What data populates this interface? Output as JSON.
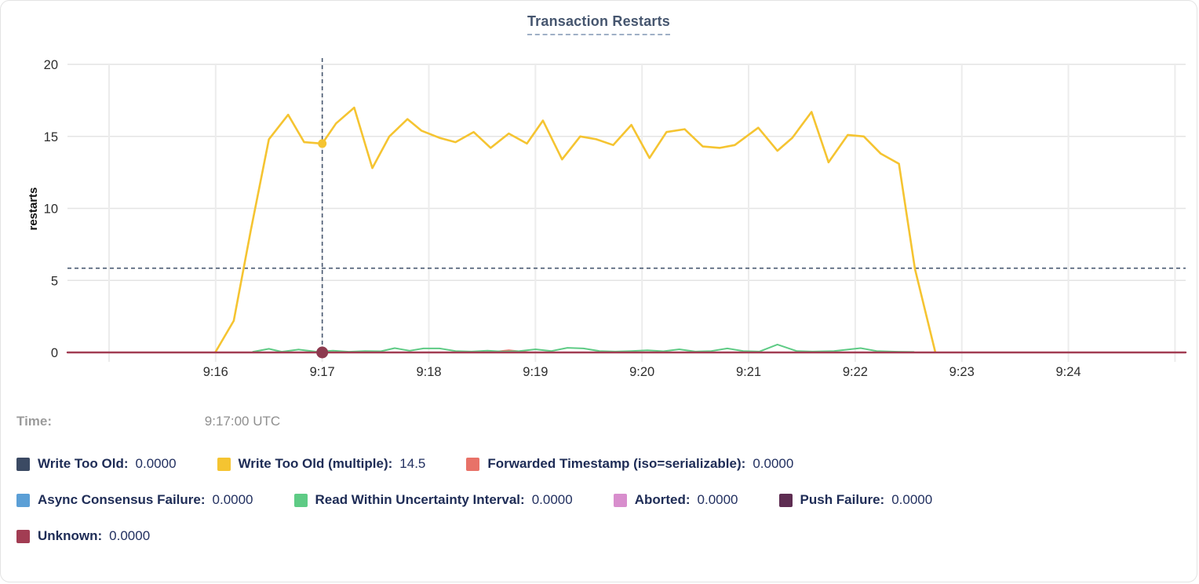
{
  "title": "Transaction Restarts",
  "tooltip": {
    "time_label": "Time:",
    "time_value": "9:17:00 UTC"
  },
  "colors": {
    "title": "#46566f",
    "crosshair": "#4a5a72",
    "grid": "#e4e4e4",
    "axis_text": "#2d2d2d",
    "write_too_old": "#3b4a63",
    "write_too_old_multiple": "#f5c431",
    "forwarded_timestamp": "#e87268",
    "async_consensus_failure": "#5b9fd6",
    "read_within_uncertainty": "#5ecb85",
    "aborted": "#d88ecd",
    "push_failure": "#5e2d52",
    "unknown": "#a23d53",
    "hover_dot_unknown": "#8d3a4f"
  },
  "chart_data": {
    "type": "line",
    "title": "Transaction Restarts",
    "xlabel": "",
    "ylabel": "restarts",
    "ylim": [
      0,
      20
    ],
    "yticks": [
      0,
      5,
      10,
      15,
      20
    ],
    "grid": true,
    "legend_position": "bottom",
    "x_domain_minutes": [
      14.61,
      25.1
    ],
    "grid_minutes": [
      15,
      16,
      17,
      18,
      19,
      20,
      21,
      22,
      23,
      24,
      25
    ],
    "xticks": [
      {
        "t": 16,
        "label": "9:16"
      },
      {
        "t": 17,
        "label": "9:17"
      },
      {
        "t": 18,
        "label": "9:18"
      },
      {
        "t": 19,
        "label": "9:19"
      },
      {
        "t": 20,
        "label": "9:20"
      },
      {
        "t": 21,
        "label": "9:21"
      },
      {
        "t": 22,
        "label": "9:22"
      },
      {
        "t": 23,
        "label": "9:23"
      },
      {
        "t": 24,
        "label": "9:24"
      }
    ],
    "crosshair": {
      "t": 17.0,
      "hover_value_line": 5.85,
      "time_text": "9:17:00 UTC",
      "dots": [
        {
          "series": "Unknown",
          "t": 17.0,
          "value": 0,
          "color": "#8d3a4f",
          "r": 7.5
        },
        {
          "series": "Write Too Old (multiple)",
          "t": 17.0,
          "value": 14.5,
          "color": "#f5c431",
          "r": 5.5
        }
      ]
    },
    "series": [
      {
        "name": "Write Too Old (multiple)",
        "color": "#f5c431",
        "width": 2.6,
        "points": [
          [
            16.0,
            0.05
          ],
          [
            16.17,
            2.2
          ],
          [
            16.33,
            8.5
          ],
          [
            16.5,
            14.8
          ],
          [
            16.68,
            16.5
          ],
          [
            16.83,
            14.6
          ],
          [
            17.0,
            14.5
          ],
          [
            17.13,
            15.9
          ],
          [
            17.3,
            17.0
          ],
          [
            17.47,
            12.8
          ],
          [
            17.63,
            15.0
          ],
          [
            17.8,
            16.2
          ],
          [
            17.93,
            15.4
          ],
          [
            18.1,
            14.9
          ],
          [
            18.25,
            14.6
          ],
          [
            18.42,
            15.3
          ],
          [
            18.58,
            14.2
          ],
          [
            18.75,
            15.2
          ],
          [
            18.92,
            14.5
          ],
          [
            19.07,
            16.1
          ],
          [
            19.25,
            13.4
          ],
          [
            19.42,
            15.0
          ],
          [
            19.57,
            14.8
          ],
          [
            19.73,
            14.4
          ],
          [
            19.9,
            15.8
          ],
          [
            20.07,
            13.5
          ],
          [
            20.23,
            15.3
          ],
          [
            20.4,
            15.5
          ],
          [
            20.57,
            14.3
          ],
          [
            20.73,
            14.2
          ],
          [
            20.87,
            14.4
          ],
          [
            21.09,
            15.6
          ],
          [
            21.27,
            14.0
          ],
          [
            21.41,
            14.9
          ],
          [
            21.59,
            16.7
          ],
          [
            21.75,
            13.2
          ],
          [
            21.93,
            15.1
          ],
          [
            22.08,
            15.0
          ],
          [
            22.24,
            13.8
          ],
          [
            22.41,
            13.1
          ],
          [
            22.56,
            5.8
          ],
          [
            22.75,
            0.05
          ]
        ]
      },
      {
        "name": "Forwarded Timestamp (iso=serializable)",
        "color": "#e87268",
        "width": 2,
        "points": [
          [
            14.61,
            0.0
          ],
          [
            18.55,
            0.0
          ],
          [
            18.75,
            0.15
          ],
          [
            18.95,
            0.0
          ],
          [
            25.1,
            0.0
          ]
        ]
      },
      {
        "name": "Read Within Uncertainty Interval",
        "color": "#5ecb85",
        "width": 2,
        "points": [
          [
            16.35,
            0.05
          ],
          [
            16.5,
            0.25
          ],
          [
            16.62,
            0.05
          ],
          [
            16.78,
            0.2
          ],
          [
            16.95,
            0.05
          ],
          [
            17.1,
            0.12
          ],
          [
            17.25,
            0.05
          ],
          [
            17.4,
            0.1
          ],
          [
            17.55,
            0.08
          ],
          [
            17.68,
            0.3
          ],
          [
            17.82,
            0.12
          ],
          [
            17.95,
            0.28
          ],
          [
            18.1,
            0.28
          ],
          [
            18.25,
            0.1
          ],
          [
            18.4,
            0.06
          ],
          [
            18.55,
            0.12
          ],
          [
            18.7,
            0.06
          ],
          [
            18.85,
            0.1
          ],
          [
            19.0,
            0.22
          ],
          [
            19.15,
            0.1
          ],
          [
            19.3,
            0.32
          ],
          [
            19.45,
            0.28
          ],
          [
            19.6,
            0.1
          ],
          [
            19.75,
            0.06
          ],
          [
            19.9,
            0.1
          ],
          [
            20.05,
            0.15
          ],
          [
            20.2,
            0.08
          ],
          [
            20.35,
            0.22
          ],
          [
            20.5,
            0.06
          ],
          [
            20.65,
            0.1
          ],
          [
            20.8,
            0.28
          ],
          [
            20.95,
            0.1
          ],
          [
            21.1,
            0.06
          ],
          [
            21.27,
            0.55
          ],
          [
            21.45,
            0.1
          ],
          [
            21.6,
            0.06
          ],
          [
            21.8,
            0.1
          ],
          [
            22.05,
            0.3
          ],
          [
            22.2,
            0.1
          ],
          [
            22.4,
            0.05
          ],
          [
            22.55,
            0.03
          ]
        ]
      },
      {
        "name": "Unknown",
        "color": "#a23d53",
        "width": 2.4,
        "points": [
          [
            14.61,
            0.0
          ],
          [
            25.1,
            0.0
          ]
        ]
      }
    ]
  },
  "legend": {
    "rows": [
      [
        {
          "label": "Write Too Old:",
          "value": "0.0000",
          "color": "#3b4a63"
        },
        {
          "label": "Write Too Old (multiple):",
          "value": "14.5",
          "color": "#f5c431"
        },
        {
          "label": "Forwarded Timestamp (iso=serializable):",
          "value": "0.0000",
          "color": "#e87268"
        }
      ],
      [
        {
          "label": "Async Consensus Failure:",
          "value": "0.0000",
          "color": "#5b9fd6"
        },
        {
          "label": "Read Within Uncertainty Interval:",
          "value": "0.0000",
          "color": "#5ecb85"
        },
        {
          "label": "Aborted:",
          "value": "0.0000",
          "color": "#d88ecd"
        },
        {
          "label": "Push Failure:",
          "value": "0.0000",
          "color": "#5e2d52"
        }
      ],
      [
        {
          "label": "Unknown:",
          "value": "0.0000",
          "color": "#a23d53"
        }
      ]
    ]
  }
}
